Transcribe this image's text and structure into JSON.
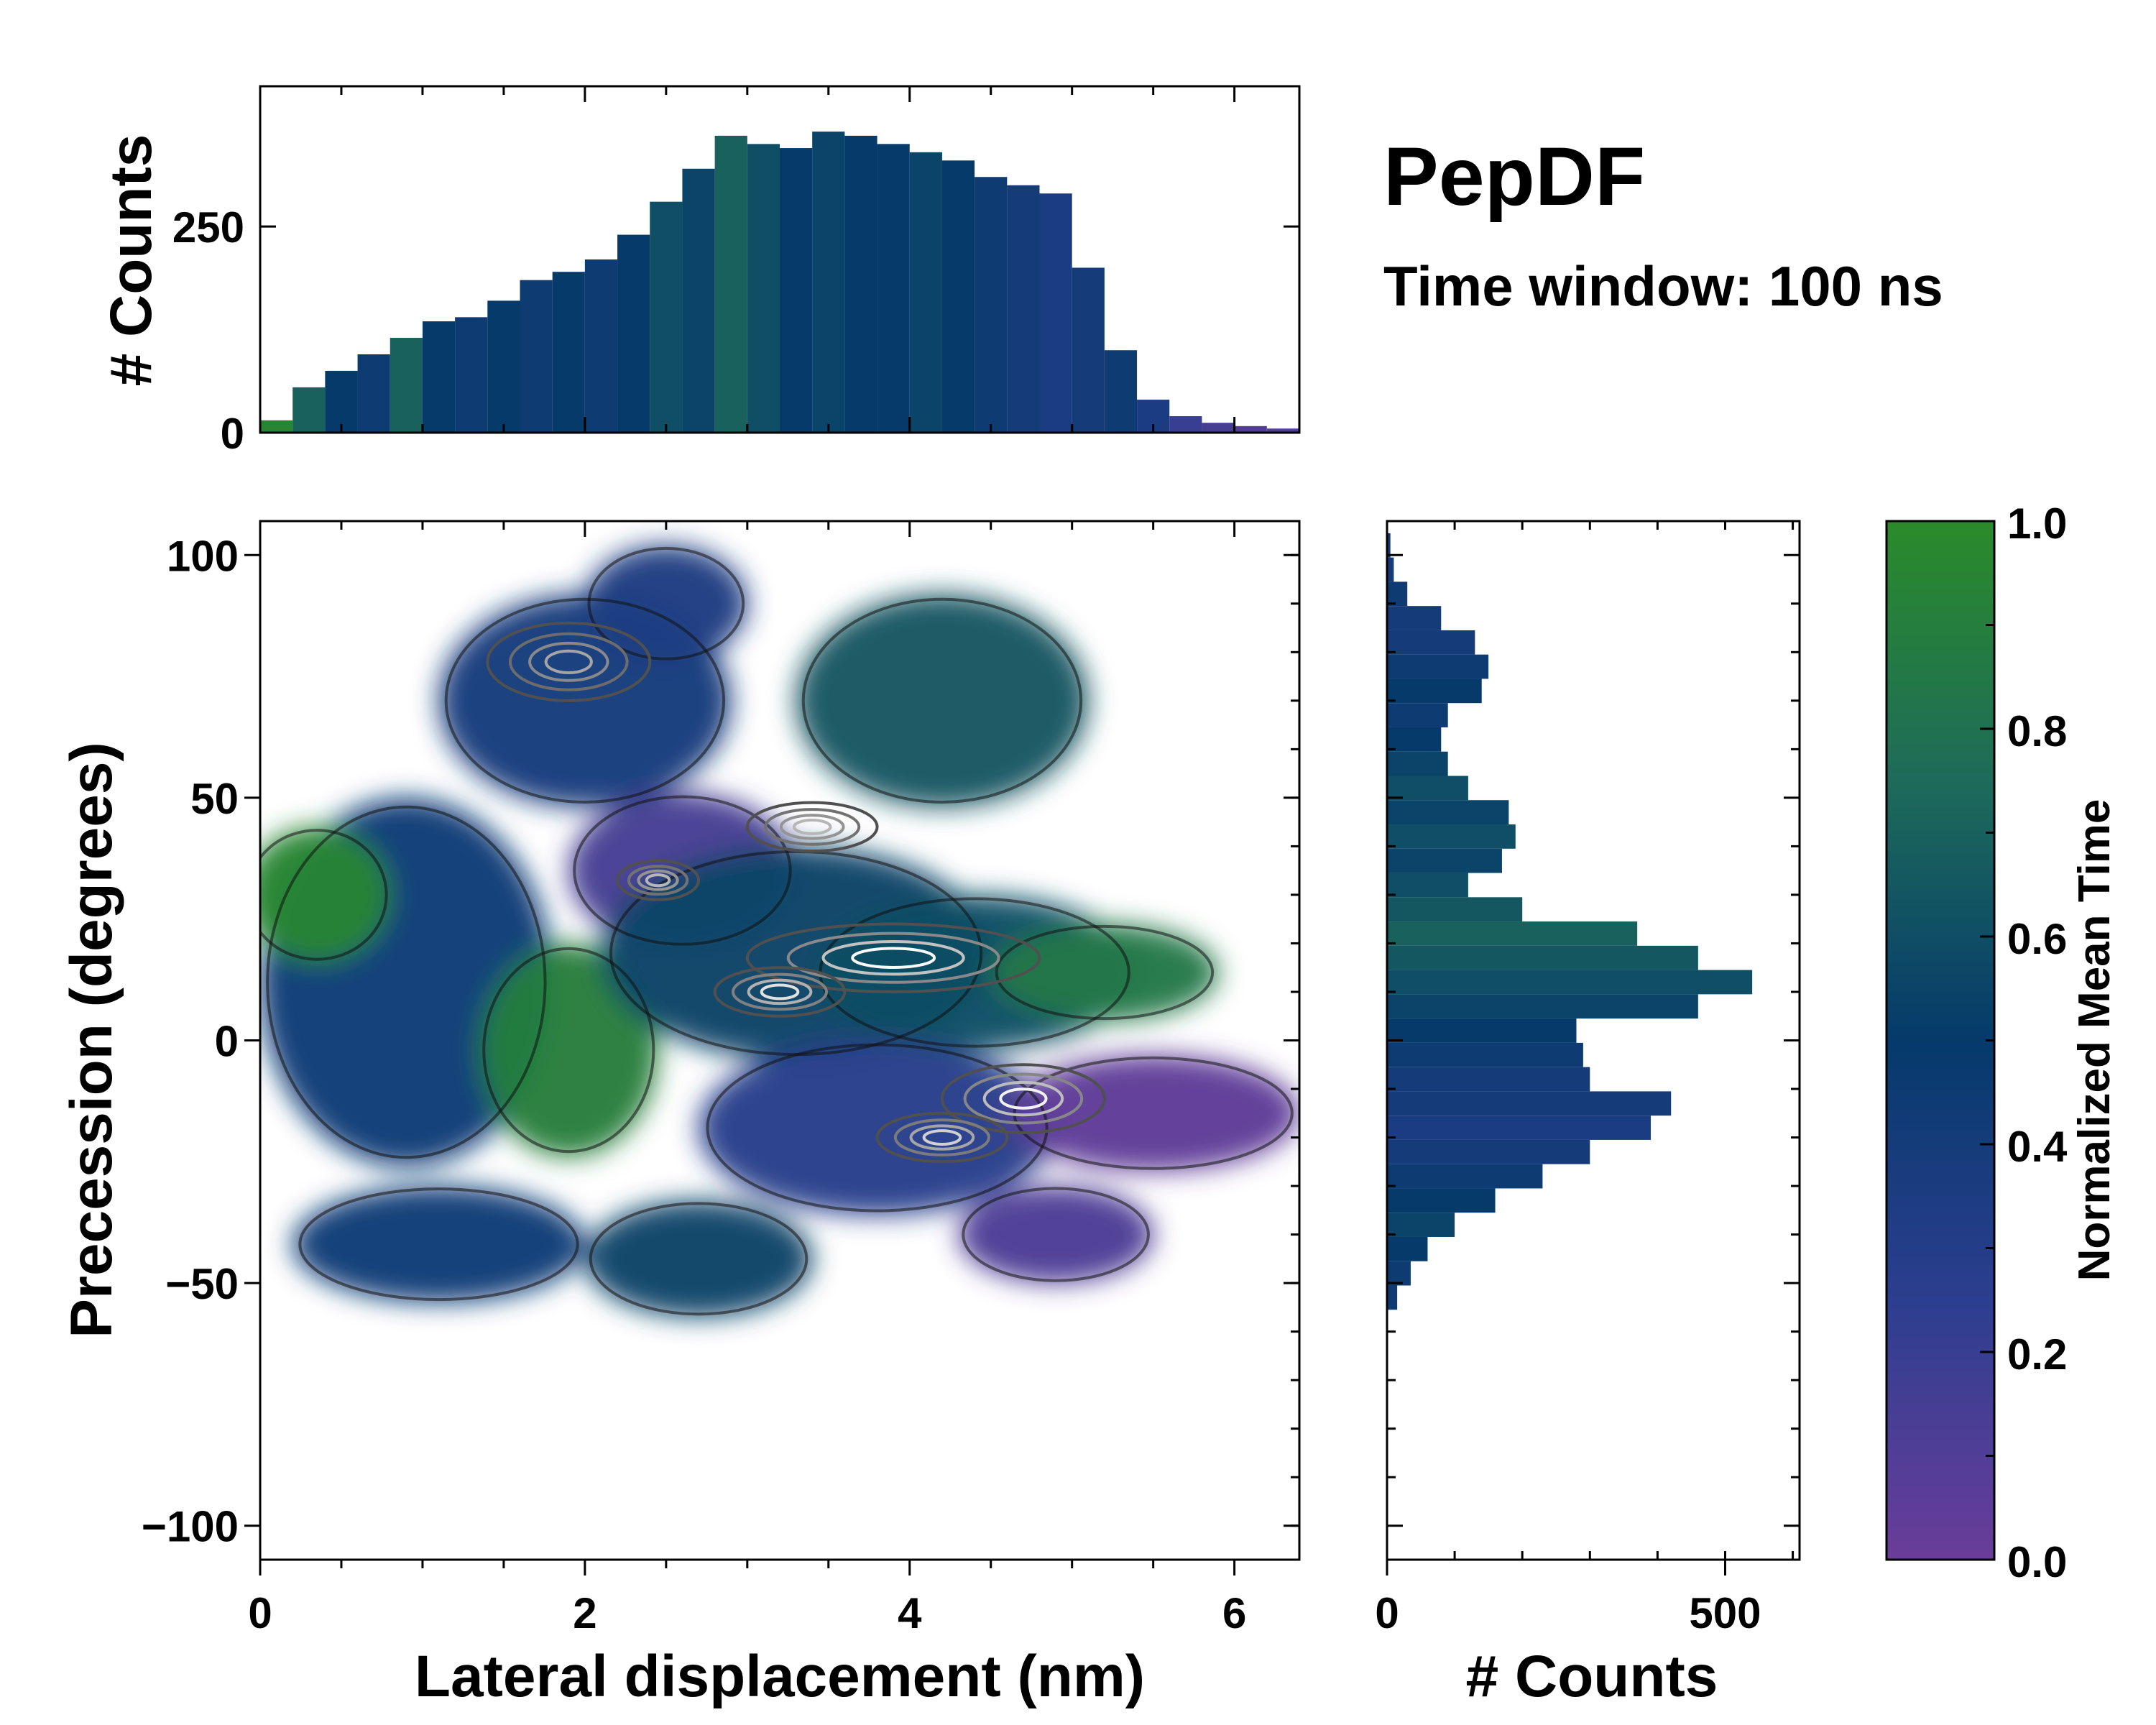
{
  "title": "PepDF",
  "subtitle": "Time window: 100 ns",
  "chart_data": [
    {
      "id": "top-histogram",
      "type": "bar",
      "title": "",
      "xlabel": "",
      "ylabel": "# Counts",
      "xlim": [
        0,
        6.4
      ],
      "ylim": [
        0,
        420
      ],
      "yticks": [
        0,
        250
      ],
      "ytick_labels": [
        "0",
        "250"
      ],
      "x": [
        0.1,
        0.3,
        0.5,
        0.7,
        0.9,
        1.1,
        1.3,
        1.5,
        1.7,
        1.9,
        2.1,
        2.3,
        2.5,
        2.7,
        2.9,
        3.1,
        3.3,
        3.5,
        3.7,
        3.9,
        4.1,
        4.3,
        4.5,
        4.7,
        4.9,
        5.1,
        5.3,
        5.5,
        5.7,
        5.9,
        6.1,
        6.3
      ],
      "values": [
        15,
        55,
        75,
        95,
        115,
        135,
        140,
        160,
        185,
        195,
        210,
        240,
        280,
        320,
        360,
        350,
        345,
        365,
        360,
        350,
        340,
        330,
        310,
        300,
        290,
        200,
        100,
        40,
        20,
        12,
        8,
        5
      ],
      "color_values": [
        0.95,
        0.7,
        0.5,
        0.45,
        0.7,
        0.5,
        0.45,
        0.5,
        0.45,
        0.5,
        0.45,
        0.5,
        0.6,
        0.55,
        0.7,
        0.6,
        0.5,
        0.55,
        0.5,
        0.5,
        0.55,
        0.5,
        0.45,
        0.4,
        0.35,
        0.4,
        0.45,
        0.35,
        0.2,
        0.15,
        0.1,
        0.1
      ]
    },
    {
      "id": "right-histogram",
      "type": "bar",
      "orientation": "horizontal",
      "title": "",
      "xlabel": "# Counts",
      "ylabel": "",
      "xlim": [
        0,
        610
      ],
      "ylim": [
        -107,
        107
      ],
      "xticks": [
        0,
        500
      ],
      "xtick_labels": [
        "0",
        "500"
      ],
      "y": [
        102,
        97,
        92,
        87,
        82,
        77,
        72,
        67,
        62,
        57,
        52,
        47,
        42,
        37,
        32,
        27,
        22,
        17,
        12,
        7,
        2,
        -3,
        -8,
        -13,
        -18,
        -23,
        -28,
        -33,
        -38,
        -43,
        -48,
        -53
      ],
      "values": [
        5,
        10,
        30,
        80,
        130,
        150,
        140,
        90,
        80,
        90,
        120,
        180,
        190,
        170,
        120,
        200,
        370,
        460,
        540,
        460,
        280,
        290,
        300,
        420,
        390,
        300,
        230,
        160,
        100,
        60,
        35,
        15
      ],
      "color_values": [
        0.4,
        0.4,
        0.45,
        0.4,
        0.4,
        0.45,
        0.5,
        0.45,
        0.5,
        0.55,
        0.6,
        0.55,
        0.6,
        0.55,
        0.6,
        0.65,
        0.7,
        0.65,
        0.6,
        0.55,
        0.5,
        0.45,
        0.4,
        0.4,
        0.35,
        0.4,
        0.45,
        0.5,
        0.55,
        0.5,
        0.45,
        0.45
      ]
    },
    {
      "id": "main-heatmap",
      "type": "heatmap",
      "title": "",
      "xlabel": "Lateral displacement (nm)",
      "ylabel": "Precession (degrees)",
      "xlim": [
        0,
        6.4
      ],
      "ylim": [
        -107,
        107
      ],
      "xticks": [
        0,
        2,
        4,
        6
      ],
      "xtick_labels": [
        "0",
        "2",
        "4",
        "6"
      ],
      "yticks": [
        -100,
        -50,
        0,
        50,
        100
      ],
      "ytick_labels": [
        "−100",
        "−50",
        "0",
        "50",
        "100"
      ],
      "regions": [
        {
          "x": 0.9,
          "y": 12,
          "rx": 0.9,
          "ry": 38,
          "value": 0.42
        },
        {
          "x": 2.0,
          "y": 70,
          "rx": 0.9,
          "ry": 22,
          "value": 0.38
        },
        {
          "x": 2.5,
          "y": 90,
          "rx": 0.5,
          "ry": 12,
          "value": 0.35
        },
        {
          "x": 4.2,
          "y": 70,
          "rx": 0.9,
          "ry": 22,
          "value": 0.65
        },
        {
          "x": 0.35,
          "y": 30,
          "rx": 0.45,
          "ry": 14,
          "value": 0.95
        },
        {
          "x": 1.9,
          "y": -2,
          "rx": 0.55,
          "ry": 22,
          "value": 0.9
        },
        {
          "x": 2.6,
          "y": 35,
          "rx": 0.7,
          "ry": 16,
          "value": 0.15
        },
        {
          "x": 3.3,
          "y": 18,
          "rx": 1.2,
          "ry": 22,
          "value": 0.55
        },
        {
          "x": 4.4,
          "y": 14,
          "rx": 1.0,
          "ry": 16,
          "value": 0.6
        },
        {
          "x": 5.2,
          "y": 14,
          "rx": 0.7,
          "ry": 10,
          "value": 0.85
        },
        {
          "x": 3.8,
          "y": -18,
          "rx": 1.1,
          "ry": 18,
          "value": 0.28
        },
        {
          "x": 5.5,
          "y": -15,
          "rx": 0.9,
          "ry": 12,
          "value": 0.05
        },
        {
          "x": 4.9,
          "y": -40,
          "rx": 0.6,
          "ry": 10,
          "value": 0.12
        },
        {
          "x": 1.1,
          "y": -42,
          "rx": 0.9,
          "ry": 12,
          "value": 0.42
        },
        {
          "x": 2.7,
          "y": -45,
          "rx": 0.7,
          "ry": 12,
          "value": 0.55
        }
      ],
      "density_peaks": [
        {
          "x": 3.9,
          "y": 17,
          "rx": 0.9,
          "ry": 7,
          "level": 1.0
        },
        {
          "x": 3.2,
          "y": 10,
          "rx": 0.4,
          "ry": 5,
          "level": 0.85
        },
        {
          "x": 4.7,
          "y": -12,
          "rx": 0.5,
          "ry": 7,
          "level": 0.95
        },
        {
          "x": 4.2,
          "y": -20,
          "rx": 0.4,
          "ry": 5,
          "level": 0.75
        },
        {
          "x": 3.4,
          "y": 44,
          "rx": 0.4,
          "ry": 5,
          "level": 0.6
        },
        {
          "x": 2.45,
          "y": 33,
          "rx": 0.25,
          "ry": 4,
          "level": 0.6
        },
        {
          "x": 1.9,
          "y": 78,
          "rx": 0.5,
          "ry": 8,
          "level": 0.5
        }
      ]
    },
    {
      "id": "colorbar",
      "type": "colorbar",
      "label": "Normalized Mean Time",
      "range": [
        0.0,
        1.0
      ],
      "ticks": [
        0.0,
        0.2,
        0.4,
        0.6,
        0.8,
        1.0
      ],
      "tick_labels": [
        "0.0",
        "0.2",
        "0.4",
        "0.6",
        "0.8",
        "1.0"
      ],
      "colormap": [
        "#6a3d9a",
        "#2c3e8f",
        "#053a6b",
        "#1e6b5a",
        "#2a8b2a"
      ]
    }
  ]
}
